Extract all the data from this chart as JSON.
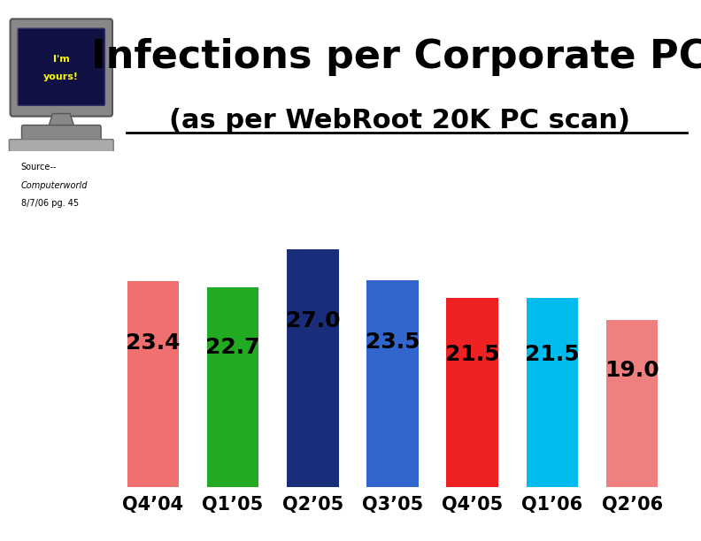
{
  "title": "Infections per Corporate PC",
  "subtitle": "(as per WebRoot 20K PC scan)",
  "categories": [
    "Q4’04",
    "Q1’05",
    "Q2’05",
    "Q3’05",
    "Q4’05",
    "Q1’06",
    "Q2’06"
  ],
  "values": [
    23.4,
    22.7,
    27.0,
    23.5,
    21.5,
    21.5,
    19.0
  ],
  "bar_colors": [
    "#F07070",
    "#22AA22",
    "#1A2D7A",
    "#3366CC",
    "#EE2222",
    "#00BBEE",
    "#F08080"
  ],
  "value_label_color": "#000000",
  "background_color": "#FFFFFF",
  "plot_bg_color": "#FFFFFF",
  "source_line1": "Source--",
  "source_line2": "Computerworld",
  "source_line3": "8/7/06 pg. 45",
  "title_fontsize": 32,
  "subtitle_fontsize": 22,
  "bar_label_fontsize": 18,
  "xlabel_fontsize": 15,
  "ylim": [
    0,
    32
  ],
  "figsize": [
    7.92,
    6.12
  ],
  "dpi": 100
}
